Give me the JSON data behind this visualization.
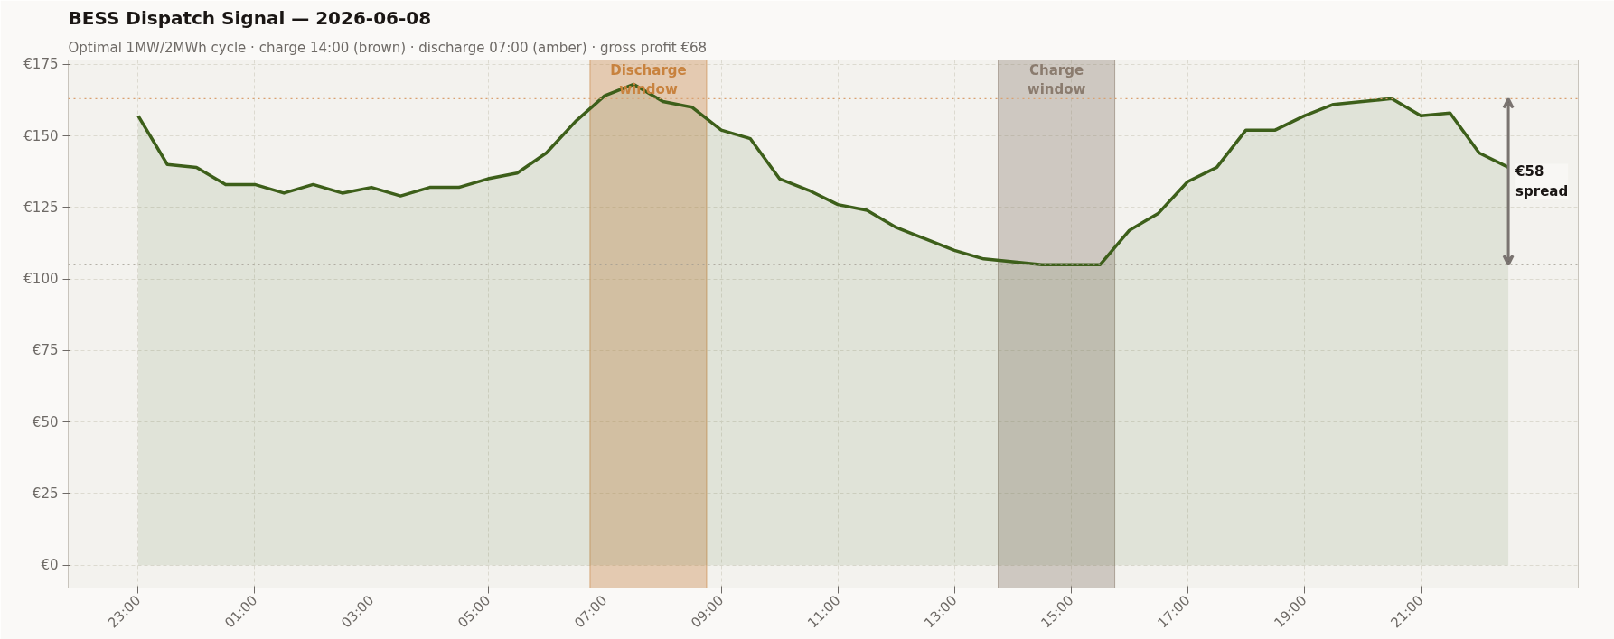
{
  "chart_data": {
    "type": "area",
    "title": "BESS Dispatch Signal — 2026-06-08",
    "subtitle": "Optimal 1MW/2MWh cycle  ·  charge 14:00 (brown)  ·  discharge 07:00 (amber)  ·  gross profit €68",
    "x": [
      "2026-06-07T23:00",
      "2026-06-07T23:30",
      "2026-06-08T00:00",
      "2026-06-08T00:30",
      "2026-06-08T01:00",
      "2026-06-08T01:30",
      "2026-06-08T02:00",
      "2026-06-08T02:30",
      "2026-06-08T03:00",
      "2026-06-08T03:30",
      "2026-06-08T04:00",
      "2026-06-08T04:30",
      "2026-06-08T05:00",
      "2026-06-08T05:30",
      "2026-06-08T06:00",
      "2026-06-08T06:30",
      "2026-06-08T07:00",
      "2026-06-08T07:30",
      "2026-06-08T08:00",
      "2026-06-08T08:30",
      "2026-06-08T09:00",
      "2026-06-08T09:30",
      "2026-06-08T10:00",
      "2026-06-08T10:30",
      "2026-06-08T11:00",
      "2026-06-08T11:30",
      "2026-06-08T12:00",
      "2026-06-08T12:30",
      "2026-06-08T13:00",
      "2026-06-08T13:30",
      "2026-06-08T14:00",
      "2026-06-08T14:30",
      "2026-06-08T15:00",
      "2026-06-08T15:30",
      "2026-06-08T16:00",
      "2026-06-08T16:30",
      "2026-06-08T17:00",
      "2026-06-08T17:30",
      "2026-06-08T18:00",
      "2026-06-08T18:30",
      "2026-06-08T19:00",
      "2026-06-08T19:30",
      "2026-06-08T20:00",
      "2026-06-08T20:30",
      "2026-06-08T21:00",
      "2026-06-08T21:30",
      "2026-06-08T22:00",
      "2026-06-08T22:30"
    ],
    "series": [
      {
        "color": "#3d5f1a",
        "values": [
          157,
          140,
          139,
          133,
          133,
          130,
          133,
          130,
          132,
          129,
          132,
          132,
          135,
          137,
          144,
          155,
          164,
          168,
          162,
          160,
          152,
          149,
          135,
          131,
          126,
          124,
          118,
          114,
          110,
          107,
          106,
          105,
          105,
          105,
          117,
          123,
          134,
          139,
          152,
          152,
          157,
          161,
          162,
          163,
          157,
          158,
          144,
          139
        ]
      }
    ],
    "xlim": [
      "2026-06-07T21:48",
      "2026-06-08T23:42"
    ],
    "xticks": [
      {
        "value": "2026-06-07T23:00",
        "label": "23:00"
      },
      {
        "value": "2026-06-08T01:00",
        "label": "01:00"
      },
      {
        "value": "2026-06-08T03:00",
        "label": "03:00"
      },
      {
        "value": "2026-06-08T05:00",
        "label": "05:00"
      },
      {
        "value": "2026-06-08T07:00",
        "label": "07:00"
      },
      {
        "value": "2026-06-08T09:00",
        "label": "09:00"
      },
      {
        "value": "2026-06-08T11:00",
        "label": "11:00"
      },
      {
        "value": "2026-06-08T13:00",
        "label": "13:00"
      },
      {
        "value": "2026-06-08T15:00",
        "label": "15:00"
      },
      {
        "value": "2026-06-08T17:00",
        "label": "17:00"
      },
      {
        "value": "2026-06-08T19:00",
        "label": "19:00"
      },
      {
        "value": "2026-06-08T21:00",
        "label": "21:00"
      }
    ],
    "ylim": [
      -8,
      176.5
    ],
    "yticks": [
      {
        "value": 0,
        "label": "€0"
      },
      {
        "value": 25,
        "label": "€25"
      },
      {
        "value": 50,
        "label": "€50"
      },
      {
        "value": 75,
        "label": "€75"
      },
      {
        "value": 100,
        "label": "€100"
      },
      {
        "value": 125,
        "label": "€125"
      },
      {
        "value": 150,
        "label": "€150"
      },
      {
        "value": 175,
        "label": "€175"
      }
    ],
    "bands": [
      {
        "axis": "x",
        "from": "2026-06-08T06:45",
        "to": "2026-06-08T08:45",
        "label": "Discharge\nwindow",
        "color": "#c8823e"
      },
      {
        "axis": "x",
        "from": "2026-06-08T13:45",
        "to": "2026-06-08T15:45",
        "label": "Charge\nwindow",
        "color": "#8a7b6e"
      }
    ],
    "ref_lines": [
      {
        "axis": "y",
        "value": 163,
        "color": "#d9a070",
        "line_style": "dotted"
      },
      {
        "axis": "y",
        "value": 105,
        "color": "#a09a90",
        "line_style": "dotted"
      }
    ],
    "annotations": [
      "€58\nspread"
    ],
    "grid": true,
    "line_style": "solid"
  }
}
